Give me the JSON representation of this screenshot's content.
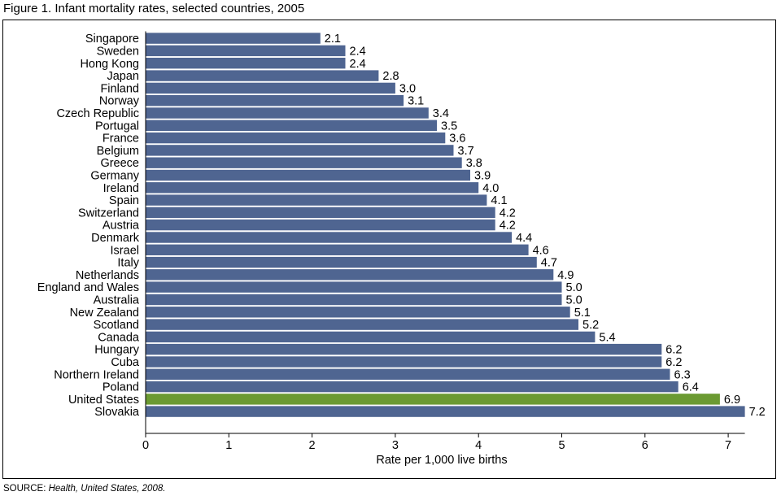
{
  "figure": {
    "title": "Figure 1. Infant mortality rates, selected countries, 2005",
    "source_prefix": "SOURCE: ",
    "source_publication": "Health, United States, 2008."
  },
  "colors": {
    "bar": "#4f6591",
    "highlight_bar": "#6b9a32",
    "axis": "#000000",
    "background": "#ffffff"
  },
  "chart_data": {
    "type": "bar",
    "orientation": "horizontal",
    "title": "Figure 1. Infant mortality rates, selected countries, 2005",
    "xlabel": "Rate per 1,000 live births",
    "ylabel": "",
    "xlim": [
      0,
      7.2
    ],
    "xticks": [
      "0",
      "1",
      "2",
      "3",
      "4",
      "5",
      "6",
      "7"
    ],
    "grid": false,
    "highlight": "United States",
    "categories": [
      "Singapore",
      "Sweden",
      "Hong Kong",
      "Japan",
      "Finland",
      "Norway",
      "Czech Republic",
      "Portugal",
      "France",
      "Belgium",
      "Greece",
      "Germany",
      "Ireland",
      "Spain",
      "Switzerland",
      "Austria",
      "Denmark",
      "Israel",
      "Italy",
      "Netherlands",
      "England and Wales",
      "Australia",
      "New Zealand",
      "Scotland",
      "Canada",
      "Hungary",
      "Cuba",
      "Northern Ireland",
      "Poland",
      "United States",
      "Slovakia"
    ],
    "values": [
      2.1,
      2.4,
      2.4,
      2.8,
      3.0,
      3.1,
      3.4,
      3.5,
      3.6,
      3.7,
      3.8,
      3.9,
      4.0,
      4.1,
      4.2,
      4.2,
      4.4,
      4.6,
      4.7,
      4.9,
      5.0,
      5.0,
      5.1,
      5.2,
      5.4,
      6.2,
      6.2,
      6.3,
      6.4,
      6.9,
      7.2
    ],
    "data_labels": [
      "2.1",
      "2.4",
      "2.4",
      "2.8",
      "3.0",
      "3.1",
      "3.4",
      "3.5",
      "3.6",
      "3.7",
      "3.8",
      "3.9",
      "4.0",
      "4.1",
      "4.2",
      "4.2",
      "4.4",
      "4.6",
      "4.7",
      "4.9",
      "5.0",
      "5.0",
      "5.1",
      "5.2",
      "5.4",
      "6.2",
      "6.2",
      "6.3",
      "6.4",
      "6.9",
      "7.2"
    ]
  }
}
